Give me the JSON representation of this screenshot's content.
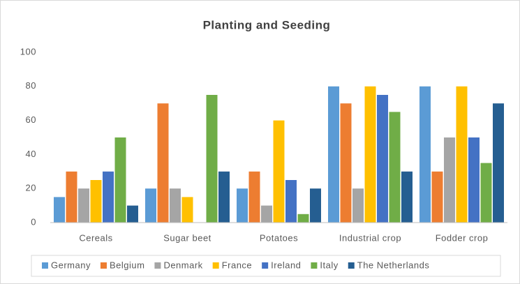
{
  "chart_data": {
    "type": "bar",
    "title": "Planting and Seeding",
    "categories": [
      "Cereals",
      "Sugar beet",
      "Potatoes",
      "Industrial crop",
      "Fodder crop"
    ],
    "series": [
      {
        "name": "Germany",
        "color": "#5b9bd5",
        "values": [
          15,
          20,
          20,
          80,
          80
        ]
      },
      {
        "name": "Belgium",
        "color": "#ed7d31",
        "values": [
          30,
          70,
          30,
          70,
          30
        ]
      },
      {
        "name": "Denmark",
        "color": "#a5a5a5",
        "values": [
          20,
          20,
          10,
          20,
          50
        ]
      },
      {
        "name": "France",
        "color": "#ffc000",
        "values": [
          25,
          15,
          60,
          80,
          80
        ]
      },
      {
        "name": "Ireland",
        "color": "#4472c4",
        "values": [
          30,
          0,
          25,
          75,
          50
        ]
      },
      {
        "name": "Italy",
        "color": "#70ad47",
        "values": [
          50,
          75,
          5,
          65,
          35
        ]
      },
      {
        "name": "The Netherlands",
        "color": "#255e91",
        "values": [
          10,
          30,
          20,
          30,
          70
        ]
      }
    ],
    "ylim": [
      0,
      100
    ],
    "yticks": [
      0,
      20,
      40,
      60,
      80,
      100
    ],
    "grid": false,
    "legend": "bottom"
  }
}
